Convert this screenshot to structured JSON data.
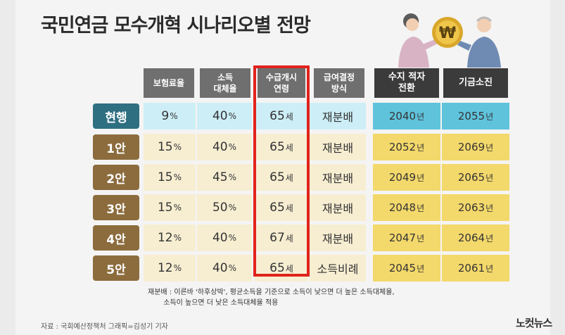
{
  "title": "국민연금 모수개혁 시나리오별 전망",
  "columns": [
    "보험료율",
    "소득\n대체율",
    "수급개시\n연령",
    "급여결정\n방식",
    "수지 적자\n전환",
    "기금소진"
  ],
  "rows": [
    {
      "label": "현행",
      "premium": "9",
      "replacement": "40",
      "age": "65",
      "method": "재분배",
      "deficit": "2040",
      "depletion": "2055"
    },
    {
      "label": "1안",
      "premium": "15",
      "replacement": "40",
      "age": "65",
      "method": "재분배",
      "deficit": "2052",
      "depletion": "2069"
    },
    {
      "label": "2안",
      "premium": "15",
      "replacement": "45",
      "age": "65",
      "method": "재분배",
      "deficit": "2049",
      "depletion": "2065"
    },
    {
      "label": "3안",
      "premium": "15",
      "replacement": "50",
      "age": "65",
      "method": "재분배",
      "deficit": "2048",
      "depletion": "2063"
    },
    {
      "label": "4안",
      "premium": "12",
      "replacement": "40",
      "age": "67",
      "method": "재분배",
      "deficit": "2047",
      "depletion": "2064"
    },
    {
      "label": "5안",
      "premium": "12",
      "replacement": "40",
      "age": "65",
      "method": "소득비례",
      "deficit": "2045",
      "depletion": "2061"
    }
  ],
  "units": {
    "percent": "%",
    "age": "세",
    "year": "년"
  },
  "note": "재분배 : 이른바 '하후상박', 평균소득을 기준으로 소득이 낮으면 더 높은 소득대체율,\n       소득이 높으면 더 낮은 소득대체율 적용",
  "source": "자료 : 국회예산정책처    그래픽=김성기 기자",
  "logo": "노컷뉴스",
  "coin_symbol": "₩",
  "colors": {
    "current_light": "#cdeef7",
    "current_dark": "#5fc3dc",
    "alt_light": "#f7eed2",
    "alt_dark": "#f3d86b",
    "highlight_border": "#e0231c"
  }
}
